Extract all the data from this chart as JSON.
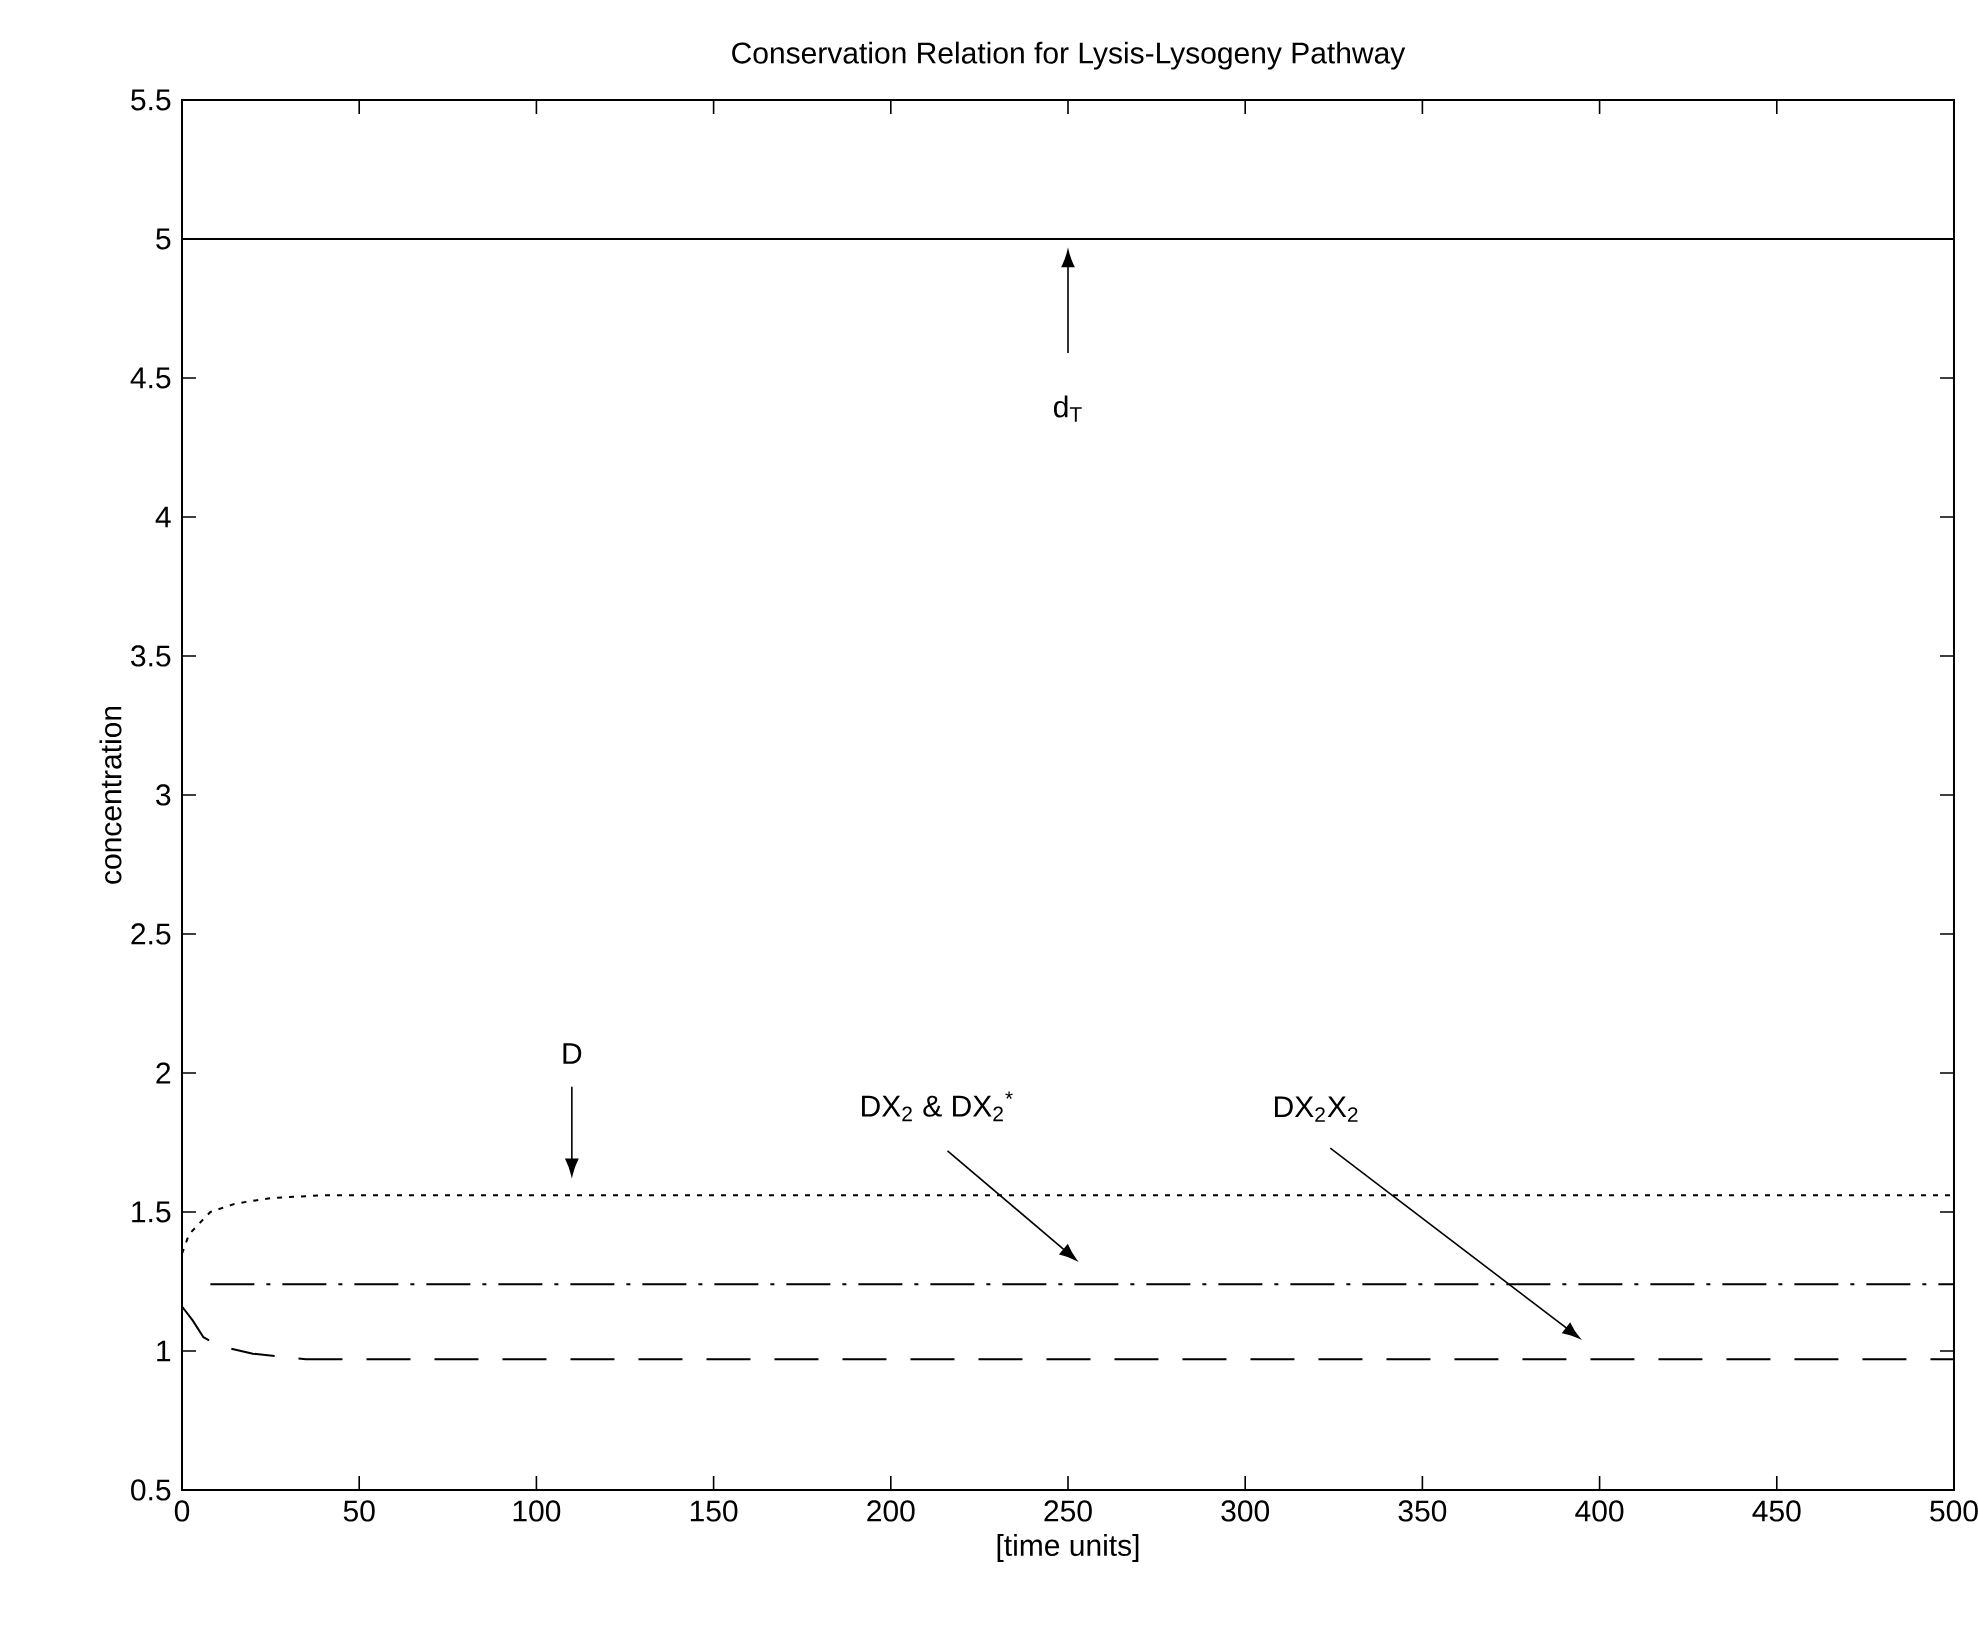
{
  "chart_data": {
    "type": "line",
    "title": "Conservation Relation for Lysis-Lysogeny Pathway",
    "xlabel": "[time units]",
    "ylabel": "concentration",
    "xlim": [
      0,
      500
    ],
    "ylim": [
      0.5,
      5.5
    ],
    "xticks": [
      0,
      50,
      100,
      150,
      200,
      250,
      300,
      350,
      400,
      450,
      500
    ],
    "yticks": [
      0.5,
      1,
      1.5,
      2,
      2.5,
      3,
      3.5,
      4,
      4.5,
      5,
      5.5
    ],
    "grid": false,
    "series": [
      {
        "color": "#000000",
        "line_style": "solid",
        "x": [
          0,
          500
        ],
        "values": [
          5,
          5
        ]
      },
      {
        "color": "#000000",
        "line_style": "dotted",
        "x": [
          0,
          2,
          5,
          8,
          15,
          25,
          40,
          500
        ],
        "values": [
          1.35,
          1.42,
          1.46,
          1.5,
          1.53,
          1.55,
          1.56,
          1.56
        ]
      },
      {
        "color": "#000000",
        "line_style": "dashdot",
        "x": [
          8,
          500
        ],
        "values": [
          1.24,
          1.24
        ]
      },
      {
        "color": "#000000",
        "line_style": "dashed",
        "x": [
          0,
          3,
          6,
          10,
          20,
          35,
          500
        ],
        "values": [
          1.16,
          1.11,
          1.05,
          1.02,
          0.99,
          0.97,
          0.97
        ]
      }
    ],
    "annotations": [
      "d$_{T}$",
      "D",
      "DX$_{2}$ & DX$_{2}$$^{*}$",
      "DX$_{2}$X$_{2}$"
    ]
  }
}
